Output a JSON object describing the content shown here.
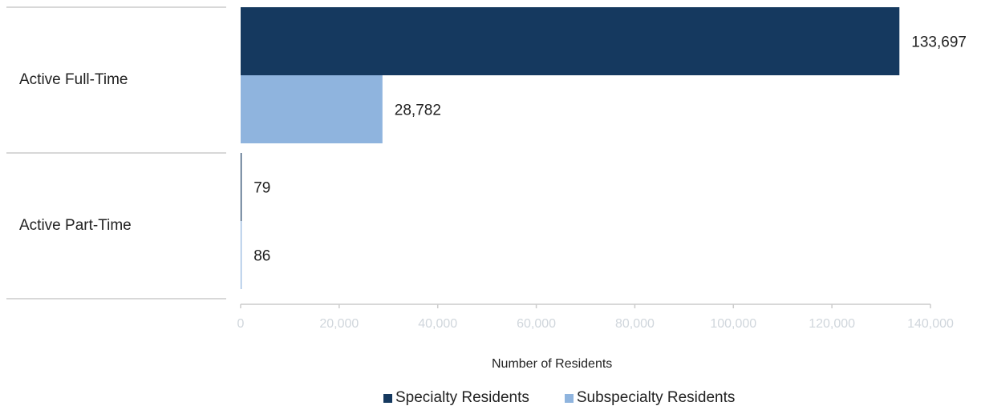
{
  "chart_data": {
    "type": "bar",
    "orientation": "horizontal",
    "categories": [
      "Active Full-Time",
      "Active Part-Time"
    ],
    "series": [
      {
        "name": "Specialty Residents",
        "values": [
          133697,
          79
        ],
        "labels": [
          "133,697",
          "79"
        ],
        "color": "#15395f"
      },
      {
        "name": "Subspecialty Residents",
        "values": [
          28782,
          86
        ],
        "labels": [
          "28,782",
          "86"
        ],
        "color": "#8fb4de"
      }
    ],
    "xlabel": "Number of Residents",
    "ylabel": "",
    "xlim": [
      0,
      140000
    ],
    "xticks": [
      0,
      20000,
      40000,
      60000,
      80000,
      100000,
      120000,
      140000
    ],
    "xtick_labels": [
      "0",
      "20,000",
      "40,000",
      "60,000",
      "80,000",
      "100,000",
      "120,000",
      "140,000"
    ],
    "legend_position": "bottom",
    "grid": false
  },
  "colors": {
    "axis": "#cccccc",
    "tick_text": "#d0d6dc",
    "label_text": "#222222"
  }
}
